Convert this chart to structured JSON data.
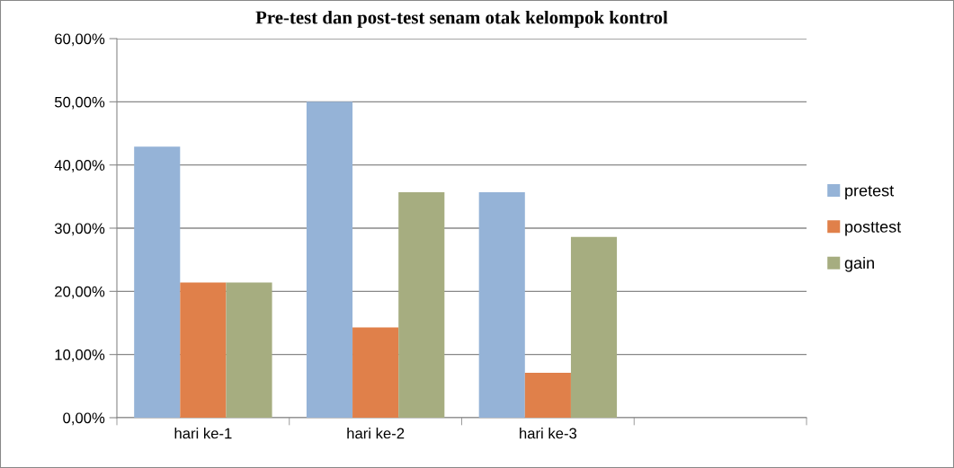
{
  "chart_data": {
    "type": "bar",
    "title": "Pre-test dan post-test senam otak kelompok kontrol",
    "categories": [
      "hari ke-1",
      "hari ke-2",
      "hari ke-3",
      null
    ],
    "series": [
      {
        "name": "pretest",
        "color": "#95b3d7",
        "values": [
          42.9,
          50.0,
          35.7,
          null
        ]
      },
      {
        "name": "posttest",
        "color": "#e0804a",
        "values": [
          21.4,
          14.3,
          7.1,
          null
        ]
      },
      {
        "name": "gain",
        "color": "#a6ad80",
        "values": [
          21.4,
          35.7,
          28.6,
          null
        ]
      }
    ],
    "ylim": [
      0,
      60
    ],
    "yticks": [
      {
        "value": 0,
        "label": "0,00%"
      },
      {
        "value": 10,
        "label": "10,00%"
      },
      {
        "value": 20,
        "label": "20,00%"
      },
      {
        "value": 30,
        "label": "30,00%"
      },
      {
        "value": 40,
        "label": "40,00%"
      },
      {
        "value": 50,
        "label": "50,00%"
      },
      {
        "value": 60,
        "label": "60,00%"
      }
    ],
    "grid": "y",
    "legend": "right"
  }
}
